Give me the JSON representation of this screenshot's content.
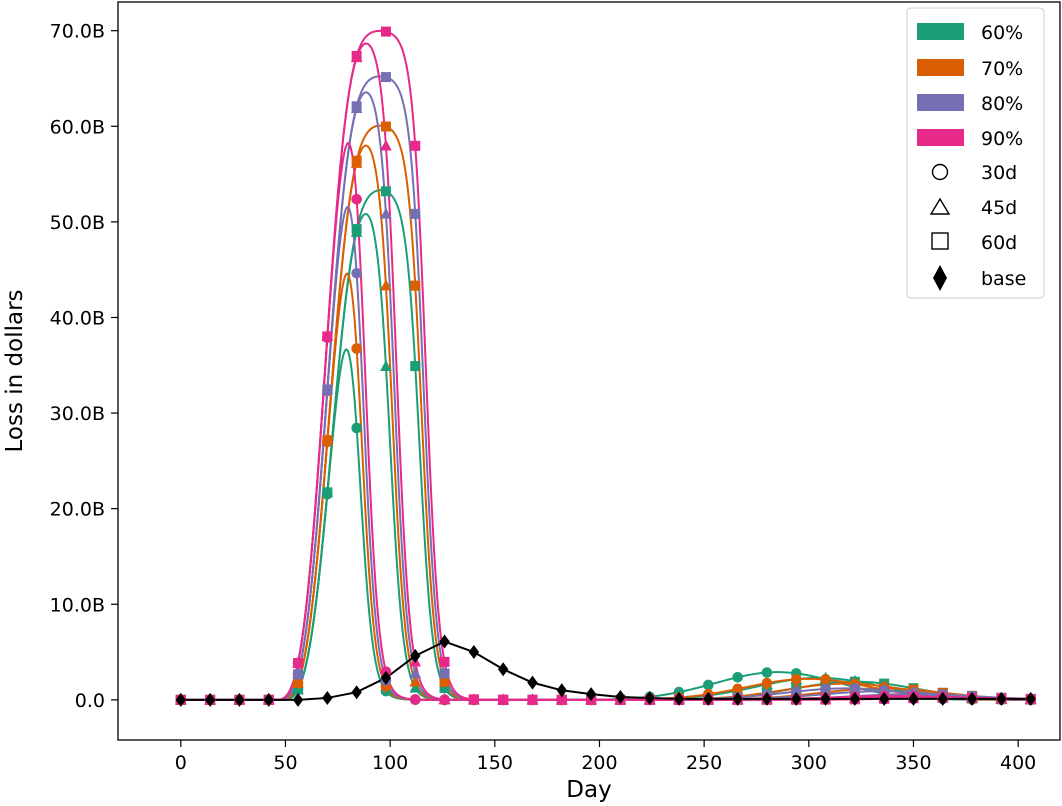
{
  "chart_data": {
    "type": "line",
    "title": "",
    "xlabel": "Day",
    "ylabel": "Loss in dollars",
    "xlim": [
      -30,
      420
    ],
    "ylim": [
      -4.2,
      73.0
    ],
    "y_unit_note": "billions of dollars",
    "xticks": [
      0,
      50,
      100,
      150,
      200,
      250,
      300,
      350,
      400
    ],
    "xtick_labels": [
      "0",
      "50",
      "100",
      "150",
      "200",
      "250",
      "300",
      "350",
      "400"
    ],
    "yticks": [
      0,
      10,
      20,
      30,
      40,
      50,
      60,
      70
    ],
    "ytick_labels": [
      "0.0",
      "10.0B",
      "20.0B",
      "30.0B",
      "40.0B",
      "50.0B",
      "60.0B",
      "70.0B"
    ],
    "grid": false,
    "legend_position": "top-right",
    "legend": {
      "colors": [
        {
          "label": "60%",
          "color": "#1b9e77"
        },
        {
          "label": "70%",
          "color": "#d95f02"
        },
        {
          "label": "80%",
          "color": "#7570b3"
        },
        {
          "label": "90%",
          "color": "#e7298a"
        }
      ],
      "markers": [
        {
          "label": "30d",
          "marker": "circle"
        },
        {
          "label": "45d",
          "marker": "triangle"
        },
        {
          "label": "60d",
          "marker": "square"
        },
        {
          "label": "base",
          "marker": "diamond"
        }
      ]
    },
    "sample_days": [
      0,
      14,
      28,
      42,
      56,
      70,
      84,
      98,
      112,
      126,
      140,
      154,
      168,
      182,
      196,
      210,
      224,
      238,
      252,
      266,
      280,
      294,
      308,
      322,
      336,
      350,
      364,
      378,
      392,
      406
    ],
    "series": [
      {
        "name": "60% 30d",
        "color": "#1b9e77",
        "marker": "circle",
        "rise": 48,
        "fall": 85,
        "plateau": 53.6,
        "tail_center": 285,
        "tail_peak": 2.9
      },
      {
        "name": "60% 45d",
        "color": "#1b9e77",
        "marker": "triangle",
        "rise": 48,
        "fall": 100,
        "plateau": 53.6,
        "tail_center": 305,
        "tail_peak": 2.3
      },
      {
        "name": "60% 60d",
        "color": "#1b9e77",
        "marker": "square",
        "rise": 48,
        "fall": 114,
        "plateau": 53.6,
        "tail_center": 322,
        "tail_peak": 1.9
      },
      {
        "name": "70% 30d",
        "color": "#d95f02",
        "marker": "circle",
        "rise": 47,
        "fall": 86,
        "plateau": 60.3,
        "tail_center": 300,
        "tail_peak": 2.2
      },
      {
        "name": "70% 45d",
        "color": "#d95f02",
        "marker": "triangle",
        "rise": 47,
        "fall": 101,
        "plateau": 60.3,
        "tail_center": 318,
        "tail_peak": 1.7
      },
      {
        "name": "70% 60d",
        "color": "#d95f02",
        "marker": "square",
        "rise": 47,
        "fall": 115,
        "plateau": 60.3,
        "tail_center": 335,
        "tail_peak": 1.2
      },
      {
        "name": "80% 30d",
        "color": "#7570b3",
        "marker": "circle",
        "rise": 46,
        "fall": 87,
        "plateau": 65.4,
        "tail_center": 318,
        "tail_peak": 1.2
      },
      {
        "name": "80% 45d",
        "color": "#7570b3",
        "marker": "triangle",
        "rise": 46,
        "fall": 102,
        "plateau": 65.4,
        "tail_center": 335,
        "tail_peak": 0.9
      },
      {
        "name": "80% 60d",
        "color": "#7570b3",
        "marker": "square",
        "rise": 46,
        "fall": 116,
        "plateau": 65.4,
        "tail_center": 350,
        "tail_peak": 0.6
      },
      {
        "name": "90% 30d",
        "color": "#e7298a",
        "marker": "circle",
        "rise": 45,
        "fall": 88,
        "plateau": 70.1,
        "tail_center": 340,
        "tail_peak": 0.4
      },
      {
        "name": "90% 45d",
        "color": "#e7298a",
        "marker": "triangle",
        "rise": 45,
        "fall": 103,
        "plateau": 70.1,
        "tail_center": 355,
        "tail_peak": 0.3
      },
      {
        "name": "90% 60d",
        "color": "#e7298a",
        "marker": "square",
        "rise": 45,
        "fall": 117,
        "plateau": 70.1,
        "tail_center": 370,
        "tail_peak": 0.2
      },
      {
        "name": "base",
        "color": "#000000",
        "marker": "diamond",
        "base": true,
        "points": [
          [
            0,
            0.0
          ],
          [
            14,
            0.0
          ],
          [
            28,
            0.0
          ],
          [
            42,
            0.0
          ],
          [
            56,
            0.0
          ],
          [
            70,
            0.2
          ],
          [
            84,
            0.8
          ],
          [
            98,
            2.3
          ],
          [
            112,
            4.6
          ],
          [
            126,
            6.1
          ],
          [
            140,
            5.0
          ],
          [
            154,
            3.2
          ],
          [
            168,
            1.8
          ],
          [
            182,
            1.0
          ],
          [
            196,
            0.6
          ],
          [
            210,
            0.3
          ],
          [
            224,
            0.2
          ],
          [
            238,
            0.1
          ],
          [
            252,
            0.1
          ],
          [
            266,
            0.1
          ],
          [
            280,
            0.1
          ],
          [
            294,
            0.1
          ],
          [
            308,
            0.1
          ],
          [
            322,
            0.1
          ],
          [
            336,
            0.1
          ],
          [
            350,
            0.1
          ],
          [
            364,
            0.1
          ],
          [
            378,
            0.1
          ],
          [
            392,
            0.1
          ],
          [
            406,
            0.1
          ]
        ]
      }
    ]
  }
}
